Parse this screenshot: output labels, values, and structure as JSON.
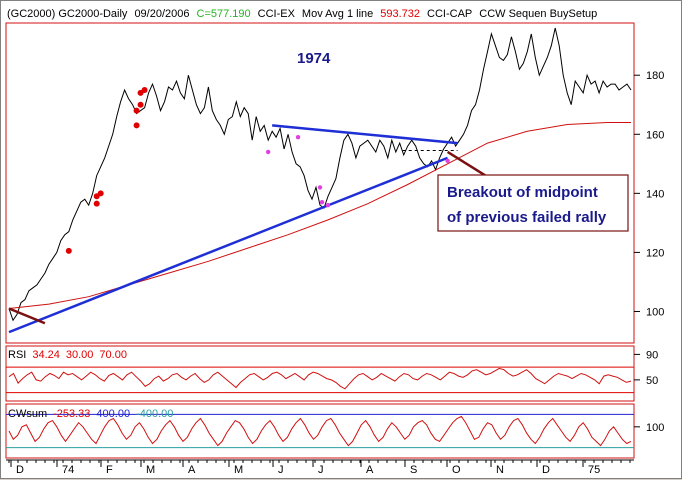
{
  "header": {
    "items": [
      {
        "text": "(GC2000) GC2000-Daily",
        "color": "#000000"
      },
      {
        "text": "09/20/2006",
        "color": "#000000"
      },
      {
        "text": "C=577.190",
        "color": "#22b422"
      },
      {
        "text": "CCI-EX",
        "color": "#000000"
      },
      {
        "text": "Mov Avg 1 line",
        "color": "#000000"
      },
      {
        "text": "593.732",
        "color": "#e00000"
      },
      {
        "text": "CCI-CAP",
        "color": "#000000"
      },
      {
        "text": "CCW Sequen BuySetup",
        "color": "#000000"
      }
    ]
  },
  "chart_data": [
    {
      "type": "line",
      "title": "1974",
      "ylim": [
        90,
        197
      ],
      "yticks": [
        100,
        120,
        140,
        160,
        180
      ],
      "x_labels": [
        "D",
        "74",
        "F",
        "M",
        "A",
        "M",
        "J",
        "J",
        "A",
        "S",
        "O",
        "N",
        "D",
        "75"
      ],
      "series": [
        {
          "color": "#000000",
          "x": [
            0,
            4,
            8,
            12,
            16,
            20,
            24,
            28,
            32,
            36,
            40,
            44,
            48,
            52,
            56,
            60,
            64,
            68,
            72,
            76,
            80,
            84,
            88,
            92,
            96,
            100,
            104,
            108,
            112,
            116,
            120,
            124,
            128,
            132,
            136,
            140,
            144,
            148,
            152,
            156,
            160,
            164,
            168,
            172,
            176,
            180,
            184,
            188,
            192,
            196,
            200,
            204,
            208,
            212,
            216,
            220,
            224,
            228,
            232,
            236,
            240,
            244,
            248,
            252,
            256,
            260,
            264,
            268,
            272,
            276,
            280,
            284,
            288,
            292,
            296,
            300,
            304,
            308,
            312,
            316,
            320,
            324,
            328,
            332,
            336,
            340,
            344,
            348,
            352,
            356,
            360,
            364,
            368,
            372,
            376,
            380,
            384,
            388,
            392,
            396,
            400,
            404,
            408,
            412,
            416,
            420,
            424,
            428,
            432,
            436,
            440,
            444,
            448,
            452,
            456,
            460,
            464,
            468,
            472,
            476,
            480,
            484,
            488,
            492,
            496,
            500,
            504,
            508,
            512,
            516,
            520,
            524,
            528,
            532,
            536,
            540,
            544,
            548,
            552,
            556,
            560,
            564,
            568,
            572,
            576,
            580,
            584,
            588,
            592,
            596,
            600,
            604,
            608,
            612,
            616,
            620,
            624
          ],
          "y": [
            101,
            97,
            99,
            103,
            104,
            107,
            108,
            109,
            111,
            113,
            116,
            118,
            120,
            124,
            126,
            127,
            131,
            134,
            137,
            138,
            136,
            140,
            146,
            149,
            152,
            156,
            160,
            166,
            171,
            175,
            172,
            170,
            167,
            168,
            169,
            174,
            177,
            173,
            168,
            171,
            176,
            175,
            178,
            174,
            172,
            180,
            175,
            170,
            167,
            169,
            176,
            168,
            165,
            163,
            160,
            165,
            166,
            171,
            166,
            169,
            167,
            158,
            166,
            161,
            163,
            158,
            161,
            159,
            162,
            155,
            160,
            154,
            150,
            149,
            146,
            141,
            138,
            142,
            136,
            135,
            139,
            142,
            145,
            152,
            158,
            160,
            157,
            152,
            156,
            157,
            158,
            156,
            154,
            158,
            156,
            152,
            158,
            154,
            157,
            153,
            156,
            158,
            156,
            152,
            150,
            149,
            151,
            148,
            152,
            155,
            157,
            159,
            156,
            158,
            160,
            163,
            168,
            170,
            175,
            182,
            188,
            194,
            190,
            186,
            185,
            187,
            193,
            188,
            182,
            184,
            188,
            194,
            186,
            180,
            183,
            186,
            190,
            196,
            190,
            180,
            174,
            170,
            178,
            176,
            174,
            180,
            177,
            178,
            174,
            178,
            176,
            177,
            177,
            175,
            176,
            177,
            175
          ]
        },
        {
          "color": "#d01010",
          "x": [
            0,
            40,
            80,
            120,
            160,
            200,
            240,
            280,
            320,
            360,
            400,
            440,
            480,
            520,
            560,
            600,
            624
          ],
          "y": [
            101,
            102.5,
            105,
            109,
            113,
            117,
            121.5,
            126,
            131,
            136.5,
            143,
            150,
            157,
            161,
            163.3,
            164,
            164
          ]
        }
      ],
      "trendlines": [
        {
          "color": "#1f2fd6",
          "points": [
            [
              0,
              93
            ],
            [
              440,
              152
            ]
          ]
        },
        {
          "color": "#1f2fd6",
          "points": [
            [
              264,
              163
            ],
            [
              450,
              157
            ]
          ]
        },
        {
          "color": "#7a1010",
          "points": [
            [
              0,
              101
            ],
            [
              36,
              96
            ]
          ]
        },
        {
          "color": "#7a1010",
          "points": [
            [
              440,
              154
            ],
            [
              478,
              146
            ]
          ]
        }
      ],
      "dashed_line": {
        "color": "#000000",
        "points": [
          [
            395,
            154.5
          ],
          [
            450,
            154.5
          ]
        ]
      },
      "red_dots": [
        [
          88,
          136.5
        ],
        [
          88,
          139
        ],
        [
          92,
          140
        ],
        [
          60,
          120.5
        ],
        [
          128,
          163
        ],
        [
          128,
          168
        ],
        [
          132,
          170
        ],
        [
          132,
          174
        ],
        [
          136,
          175
        ]
      ],
      "magenta_dots": [
        [
          260,
          154
        ],
        [
          290,
          159
        ],
        [
          312,
          142
        ],
        [
          320,
          136
        ],
        [
          314,
          137
        ],
        [
          440,
          151
        ]
      ],
      "annotation": {
        "text_lines": [
          "Breakout of midpoint",
          "of previous failed rally"
        ],
        "border_color": "#7a1010",
        "text_color": "#1a1a8c"
      }
    },
    {
      "type": "line",
      "title": "RSI",
      "readouts": [
        {
          "text": "34.24",
          "color": "#e00000"
        },
        {
          "text": "30.00",
          "color": "#e00000"
        },
        {
          "text": "70.00",
          "color": "#e00000"
        }
      ],
      "ylim": [
        20,
        100
      ],
      "yticks": [
        50,
        90
      ],
      "levels": [
        30,
        70
      ],
      "series": [
        {
          "color": "#d01010",
          "y": [
            55,
            60,
            45,
            52,
            58,
            62,
            50,
            48,
            55,
            60,
            57,
            52,
            62,
            58,
            60,
            55,
            50,
            56,
            62,
            58,
            52,
            48,
            57,
            60,
            55,
            50,
            58,
            62,
            55,
            48,
            40,
            44,
            52,
            56,
            48,
            52,
            58,
            60,
            54,
            50,
            56,
            60,
            52,
            46,
            50,
            58,
            62,
            56,
            50,
            44,
            38,
            46,
            52,
            58,
            60,
            55,
            50,
            54,
            60,
            62,
            58,
            52,
            56,
            60,
            55,
            50,
            58,
            62,
            60,
            56,
            52,
            50,
            46,
            40,
            36,
            44,
            52,
            58,
            60,
            55,
            50,
            54,
            60,
            56,
            52,
            48,
            55,
            60,
            58,
            52,
            50,
            56,
            60,
            58,
            54,
            50,
            56,
            62,
            60,
            56,
            54,
            58,
            64,
            66,
            62,
            58,
            60,
            64,
            68,
            66,
            60,
            56,
            58,
            62,
            66,
            60,
            52,
            48,
            44,
            50,
            56,
            60,
            58,
            56,
            52,
            56,
            60,
            58,
            54,
            50,
            44,
            56,
            58,
            56,
            54,
            50,
            46,
            48
          ]
        }
      ]
    },
    {
      "type": "line",
      "title": "CWsum",
      "readouts": [
        {
          "text": "-253.33",
          "color": "#e00000"
        },
        {
          "text": "400.00",
          "color": "#2020d0"
        },
        {
          "text": "-400.00",
          "color": "#2aa0a0"
        }
      ],
      "ylim": [
        -600,
        600
      ],
      "yticks": [
        100
      ],
      "levels": [
        400,
        -400
      ],
      "series": [
        {
          "color": "#d01010",
          "y": [
            0,
            -200,
            -100,
            100,
            150,
            -50,
            -250,
            -150,
            50,
            200,
            250,
            100,
            -100,
            -250,
            -100,
            50,
            200,
            100,
            -50,
            -200,
            -300,
            -100,
            100,
            250,
            300,
            150,
            -50,
            -200,
            -100,
            100,
            200,
            50,
            -150,
            -300,
            -200,
            0,
            150,
            250,
            100,
            -100,
            -250,
            -150,
            50,
            200,
            300,
            150,
            -50,
            -200,
            -350,
            -250,
            -50,
            100,
            250,
            200,
            50,
            -150,
            -300,
            -200,
            0,
            150,
            250,
            100,
            -100,
            -250,
            -150,
            50,
            200,
            300,
            150,
            -50,
            -200,
            -100,
            100,
            250,
            300,
            150,
            -50,
            -200,
            -350,
            -250,
            -50,
            150,
            250,
            100,
            -100,
            -250,
            -150,
            50,
            200,
            100,
            -50,
            -200,
            -100,
            100,
            200,
            250,
            150,
            -50,
            -200,
            -250,
            -100,
            50,
            200,
            300,
            350,
            200,
            0,
            -200,
            -150,
            50,
            200,
            150,
            -50,
            -200,
            -100,
            100,
            250,
            300,
            150,
            -50,
            -200,
            -300,
            -150,
            50,
            200,
            300,
            150,
            0,
            -150,
            -250,
            -100,
            100,
            200,
            50,
            -150,
            -250,
            -350,
            -200,
            0,
            100,
            -50,
            -200,
            -300,
            -250
          ]
        }
      ]
    }
  ]
}
